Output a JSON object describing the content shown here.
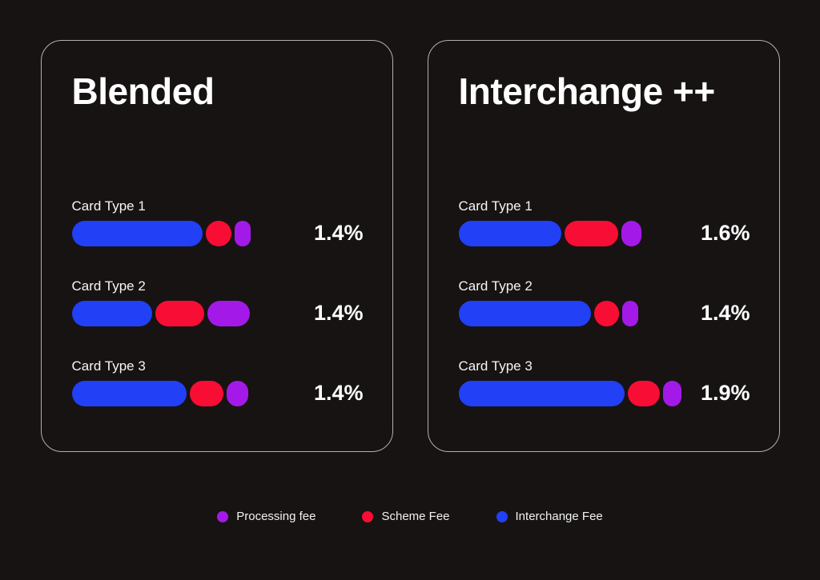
{
  "colors": {
    "background": "#171313",
    "interchange_blue": "#2240f5",
    "scheme_red": "#f80d34",
    "processing_purple": "#a31ae8",
    "text": "#ffffff"
  },
  "cards": [
    {
      "title": "Blended",
      "rows": [
        {
          "label": "Card Type 1",
          "total": "1.4%",
          "widths": {
            "interchange": "163px",
            "scheme": "32px",
            "processing": "20px"
          }
        },
        {
          "label": "Card Type 2",
          "total": "1.4%",
          "widths": {
            "interchange": "100px",
            "scheme": "61px",
            "processing": "53px"
          }
        },
        {
          "label": "Card Type 3",
          "total": "1.4%",
          "widths": {
            "interchange": "143px",
            "scheme": "42px",
            "processing": "27px"
          }
        }
      ]
    },
    {
      "title": "Interchange ++",
      "rows": [
        {
          "label": "Card Type 1",
          "total": "1.6%",
          "widths": {
            "interchange": "128px",
            "scheme": "67px",
            "processing": "25px"
          }
        },
        {
          "label": "Card Type 2",
          "total": "1.4%",
          "widths": {
            "interchange": "165px",
            "scheme": "31px",
            "processing": "20px"
          }
        },
        {
          "label": "Card Type 3",
          "total": "1.9%",
          "widths": {
            "interchange": "207px",
            "scheme": "40px",
            "processing": "23px"
          }
        }
      ]
    }
  ],
  "legend": [
    {
      "label": "Processing fee",
      "color": "#a31ae8"
    },
    {
      "label": "Scheme Fee",
      "color": "#f80d34"
    },
    {
      "label": "Interchange Fee",
      "color": "#2240f5"
    }
  ],
  "chart_data": {
    "type": "bar",
    "subtype": "horizontal-stacked",
    "legend_position": "bottom",
    "grid": false,
    "charts": [
      {
        "title": "Blended",
        "categories": [
          "Card Type 1",
          "Card Type 2",
          "Card Type 3"
        ],
        "series": [
          {
            "name": "Interchange Fee",
            "values": [
              1.05,
              0.65,
              0.95
            ],
            "estimated": true
          },
          {
            "name": "Scheme Fee",
            "values": [
              0.2,
              0.4,
              0.27
            ],
            "estimated": true
          },
          {
            "name": "Processing fee",
            "values": [
              0.15,
              0.35,
              0.18
            ],
            "estimated": true
          }
        ],
        "total_labels": [
          "1.4%",
          "1.4%",
          "1.4%"
        ]
      },
      {
        "title": "Interchange ++",
        "categories": [
          "Card Type 1",
          "Card Type 2",
          "Card Type 3"
        ],
        "series": [
          {
            "name": "Interchange Fee",
            "values": [
              0.95,
              1.07,
              1.45
            ],
            "estimated": true
          },
          {
            "name": "Scheme Fee",
            "values": [
              0.47,
              0.2,
              0.28
            ],
            "estimated": true
          },
          {
            "name": "Processing fee",
            "values": [
              0.18,
              0.13,
              0.17
            ],
            "estimated": true
          }
        ],
        "total_labels": [
          "1.6%",
          "1.4%",
          "1.9%"
        ]
      }
    ]
  }
}
